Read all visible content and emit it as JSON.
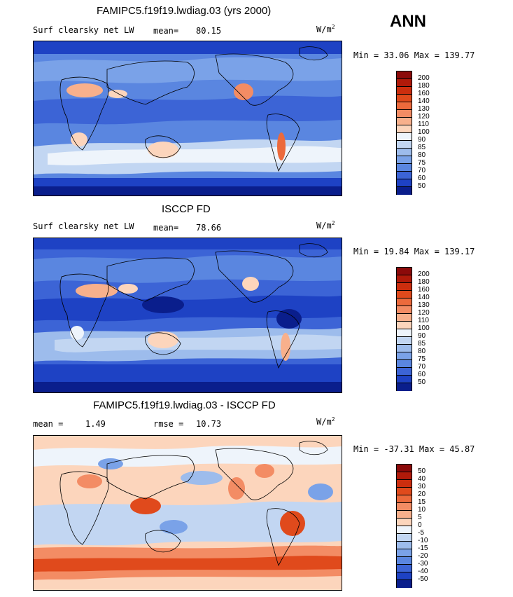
{
  "season": "ANN",
  "panels": [
    {
      "title": "FAMIPC5.f19f19.lwdiag.03 (yrs 2000)",
      "field": "Surf clearsky net LW",
      "stat_label": "mean=",
      "stat_value": "80.15",
      "units": "W/m",
      "units_exp": "2",
      "minmax": "Min =  33.06 Max = 139.77"
    },
    {
      "title": "ISCCP FD",
      "field": "Surf clearsky net LW",
      "stat_label": "mean=",
      "stat_value": "78.66",
      "units": "W/m",
      "units_exp": "2",
      "minmax": "Min =  19.84 Max = 139.17"
    },
    {
      "title": "FAMIPC5.f19f19.lwdiag.03 - ISCCP FD",
      "stat_label": "mean =",
      "stat_value": "1.49",
      "rmse_label": "rmse =",
      "rmse_value": "10.73",
      "units": "W/m",
      "units_exp": "2",
      "minmax": "Min = -37.31 Max =  45.87"
    }
  ],
  "colorbars": {
    "absolute": {
      "levels": [
        "200",
        "180",
        "160",
        "140",
        "130",
        "120",
        "110",
        "100",
        "90",
        "85",
        "80",
        "75",
        "70",
        "60",
        "50"
      ],
      "colors": [
        "#8c0a0a",
        "#b01a0a",
        "#cc2e0e",
        "#e04a1c",
        "#ec6a3c",
        "#f38c64",
        "#f8b08c",
        "#fcd5bc",
        "#eef4fb",
        "#c2d6f2",
        "#9dbcec",
        "#7aa2e8",
        "#5a86e0",
        "#3c64d6",
        "#1e42c4",
        "#0a1e8c"
      ]
    },
    "difference": {
      "levels": [
        "50",
        "40",
        "30",
        "20",
        "15",
        "10",
        "5",
        "0",
        "-5",
        "-10",
        "-15",
        "-20",
        "-30",
        "-40",
        "-50"
      ],
      "colors": [
        "#8c0a0a",
        "#b01a0a",
        "#cc2e0e",
        "#e04a1c",
        "#ec6a3c",
        "#f38c64",
        "#f8b08c",
        "#fcd5bc",
        "#eef4fb",
        "#c2d6f2",
        "#9dbcec",
        "#7aa2e8",
        "#5a86e0",
        "#3c64d6",
        "#1e42c4",
        "#0a1e8c"
      ]
    }
  },
  "chart_data": [
    {
      "type": "heatmap",
      "title": "FAMIPC5.f19f19.lwdiag.03 (yrs 2000)",
      "subtitle": "Surf clearsky net LW",
      "units": "W/m2",
      "mean": 80.15,
      "min": 33.06,
      "max": 139.77,
      "contour_levels": [
        50,
        60,
        70,
        75,
        80,
        85,
        90,
        100,
        110,
        120,
        130,
        140,
        160,
        180,
        200
      ]
    },
    {
      "type": "heatmap",
      "title": "ISCCP FD",
      "subtitle": "Surf clearsky net LW",
      "units": "W/m2",
      "mean": 78.66,
      "min": 19.84,
      "max": 139.17,
      "contour_levels": [
        50,
        60,
        70,
        75,
        80,
        85,
        90,
        100,
        110,
        120,
        130,
        140,
        160,
        180,
        200
      ]
    },
    {
      "type": "heatmap",
      "title": "FAMIPC5.f19f19.lwdiag.03 - ISCCP FD",
      "units": "W/m2",
      "mean": 1.49,
      "rmse": 10.73,
      "min": -37.31,
      "max": 45.87,
      "contour_levels": [
        -50,
        -40,
        -30,
        -20,
        -15,
        -10,
        -5,
        0,
        5,
        10,
        15,
        20,
        30,
        40,
        50
      ]
    }
  ]
}
